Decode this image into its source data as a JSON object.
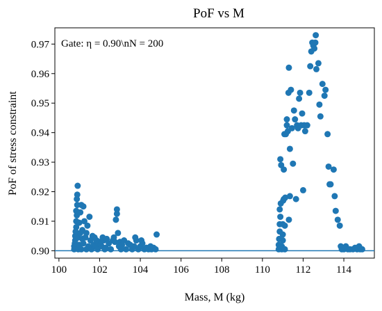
{
  "chart_data": {
    "type": "scatter",
    "title": "PoF vs M",
    "xlabel": "Mass, M (kg)",
    "ylabel": "PoF of stress constraint",
    "annotation": "Gate: η = 0.90\\nN = 200",
    "xlim": [
      99.8,
      115.5
    ],
    "ylim": [
      0.8975,
      0.9755
    ],
    "xticks": [
      "100",
      "102",
      "104",
      "106",
      "108",
      "110",
      "112",
      "114"
    ],
    "yticks": [
      "0.90",
      "0.91",
      "0.92",
      "0.93",
      "0.94",
      "0.95",
      "0.96",
      "0.97"
    ],
    "gate_line": 0.9,
    "colors": {
      "points": "#1f77b4",
      "line": "#1f77b4"
    },
    "grid": false,
    "legend": "none",
    "points": [
      [
        100.75,
        0.9005
      ],
      [
        100.75,
        0.9015
      ],
      [
        100.78,
        0.9025
      ],
      [
        100.8,
        0.9035
      ],
      [
        100.8,
        0.905
      ],
      [
        100.82,
        0.9065
      ],
      [
        100.85,
        0.908
      ],
      [
        100.85,
        0.91
      ],
      [
        100.88,
        0.912
      ],
      [
        100.85,
        0.9135
      ],
      [
        100.9,
        0.9155
      ],
      [
        100.88,
        0.9175
      ],
      [
        100.9,
        0.919
      ],
      [
        100.92,
        0.922
      ],
      [
        100.95,
        0.9045
      ],
      [
        100.95,
        0.9005
      ],
      [
        101.0,
        0.902
      ],
      [
        101.0,
        0.9095
      ],
      [
        101.05,
        0.913
      ],
      [
        101.05,
        0.906
      ],
      [
        101.1,
        0.9155
      ],
      [
        101.1,
        0.9005
      ],
      [
        101.15,
        0.907
      ],
      [
        101.15,
        0.904
      ],
      [
        101.2,
        0.915
      ],
      [
        101.2,
        0.9025
      ],
      [
        101.25,
        0.91
      ],
      [
        101.3,
        0.9045
      ],
      [
        101.35,
        0.9005
      ],
      [
        101.35,
        0.906
      ],
      [
        101.4,
        0.9085
      ],
      [
        101.45,
        0.9015
      ],
      [
        101.5,
        0.9115
      ],
      [
        101.55,
        0.9035
      ],
      [
        101.6,
        0.9005
      ],
      [
        101.65,
        0.905
      ],
      [
        101.7,
        0.902
      ],
      [
        101.75,
        0.9045
      ],
      [
        101.8,
        0.9015
      ],
      [
        101.85,
        0.9035
      ],
      [
        101.9,
        0.9005
      ],
      [
        101.95,
        0.9025
      ],
      [
        102.0,
        0.903
      ],
      [
        102.05,
        0.902
      ],
      [
        102.1,
        0.9015
      ],
      [
        102.15,
        0.9045
      ],
      [
        102.2,
        0.9035
      ],
      [
        102.25,
        0.9005
      ],
      [
        102.3,
        0.901
      ],
      [
        102.35,
        0.904
      ],
      [
        102.45,
        0.9025
      ],
      [
        102.55,
        0.9005
      ],
      [
        102.65,
        0.9035
      ],
      [
        102.7,
        0.9045
      ],
      [
        102.75,
        0.903
      ],
      [
        102.8,
        0.9105
      ],
      [
        102.85,
        0.9125
      ],
      [
        102.85,
        0.914
      ],
      [
        102.9,
        0.906
      ],
      [
        102.95,
        0.9015
      ],
      [
        103.0,
        0.903
      ],
      [
        103.05,
        0.9005
      ],
      [
        103.1,
        0.902
      ],
      [
        103.2,
        0.9035
      ],
      [
        103.3,
        0.9005
      ],
      [
        103.4,
        0.9025
      ],
      [
        103.5,
        0.902
      ],
      [
        103.6,
        0.9005
      ],
      [
        103.7,
        0.9015
      ],
      [
        103.75,
        0.9045
      ],
      [
        103.8,
        0.9035
      ],
      [
        103.9,
        0.9005
      ],
      [
        104.0,
        0.9015
      ],
      [
        104.05,
        0.9035
      ],
      [
        104.1,
        0.9025
      ],
      [
        104.2,
        0.9005
      ],
      [
        104.3,
        0.901
      ],
      [
        104.4,
        0.9005
      ],
      [
        104.5,
        0.9015
      ],
      [
        104.55,
        0.9005
      ],
      [
        104.65,
        0.901
      ],
      [
        104.75,
        0.9005
      ],
      [
        104.8,
        0.9055
      ],
      [
        110.8,
        0.9005
      ],
      [
        110.8,
        0.902
      ],
      [
        110.82,
        0.904
      ],
      [
        110.85,
        0.9065
      ],
      [
        110.85,
        0.909
      ],
      [
        110.88,
        0.9115
      ],
      [
        110.85,
        0.914
      ],
      [
        110.9,
        0.916
      ],
      [
        110.88,
        0.931
      ],
      [
        110.92,
        0.929
      ],
      [
        110.95,
        0.9005
      ],
      [
        110.95,
        0.9015
      ],
      [
        111.0,
        0.9035
      ],
      [
        111.0,
        0.9055
      ],
      [
        111.0,
        0.909
      ],
      [
        111.02,
        0.917
      ],
      [
        111.05,
        0.9175
      ],
      [
        111.05,
        0.9275
      ],
      [
        111.08,
        0.9395
      ],
      [
        111.1,
        0.9005
      ],
      [
        111.1,
        0.9085
      ],
      [
        111.12,
        0.918
      ],
      [
        111.15,
        0.9395
      ],
      [
        111.2,
        0.9425
      ],
      [
        111.2,
        0.9445
      ],
      [
        111.25,
        0.9405
      ],
      [
        111.28,
        0.9535
      ],
      [
        111.3,
        0.962
      ],
      [
        111.3,
        0.9105
      ],
      [
        111.35,
        0.9185
      ],
      [
        111.35,
        0.9345
      ],
      [
        111.4,
        0.9545
      ],
      [
        111.45,
        0.9415
      ],
      [
        111.5,
        0.9295
      ],
      [
        111.55,
        0.9475
      ],
      [
        111.6,
        0.9445
      ],
      [
        111.65,
        0.9175
      ],
      [
        111.7,
        0.9425
      ],
      [
        111.75,
        0.9415
      ],
      [
        111.8,
        0.9515
      ],
      [
        111.85,
        0.9535
      ],
      [
        111.9,
        0.9425
      ],
      [
        111.95,
        0.9465
      ],
      [
        112.0,
        0.9205
      ],
      [
        112.05,
        0.9425
      ],
      [
        112.1,
        0.9405
      ],
      [
        112.2,
        0.9425
      ],
      [
        112.3,
        0.9535
      ],
      [
        112.35,
        0.9625
      ],
      [
        112.4,
        0.9675
      ],
      [
        112.45,
        0.9705
      ],
      [
        112.5,
        0.9695
      ],
      [
        112.55,
        0.9685
      ],
      [
        112.6,
        0.9705
      ],
      [
        112.62,
        0.973
      ],
      [
        112.65,
        0.9615
      ],
      [
        112.75,
        0.9635
      ],
      [
        112.8,
        0.9495
      ],
      [
        112.85,
        0.9455
      ],
      [
        112.95,
        0.9565
      ],
      [
        113.05,
        0.9525
      ],
      [
        113.1,
        0.9545
      ],
      [
        113.2,
        0.9395
      ],
      [
        113.25,
        0.9285
      ],
      [
        113.3,
        0.9225
      ],
      [
        113.35,
        0.9225
      ],
      [
        113.5,
        0.9275
      ],
      [
        113.55,
        0.9185
      ],
      [
        113.6,
        0.9135
      ],
      [
        113.7,
        0.9105
      ],
      [
        113.8,
        0.9085
      ],
      [
        113.85,
        0.9015
      ],
      [
        113.9,
        0.9005
      ],
      [
        114.0,
        0.9005
      ],
      [
        114.1,
        0.9015
      ],
      [
        114.2,
        0.9005
      ],
      [
        114.3,
        0.9005
      ],
      [
        114.45,
        0.9005
      ],
      [
        114.55,
        0.901
      ],
      [
        114.65,
        0.9005
      ],
      [
        114.75,
        0.9015
      ],
      [
        114.8,
        0.9005
      ],
      [
        114.9,
        0.9005
      ]
    ]
  }
}
